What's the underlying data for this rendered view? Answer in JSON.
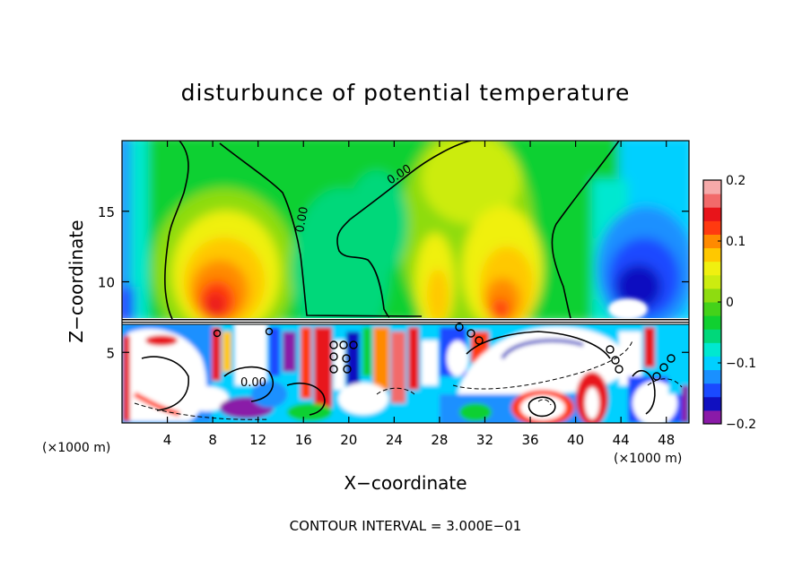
{
  "chart_data": {
    "type": "heatmap",
    "title": "disturbunce of potential temperature",
    "xlabel": "X−coordinate",
    "ylabel": "Z−coordinate",
    "x_unit_left": "(×1000 m)",
    "x_unit_right": "(×1000 m)",
    "footer": "CONTOUR INTERVAL = 3.000E−01",
    "xlim": [
      0,
      50
    ],
    "ylim": [
      0,
      20
    ],
    "x_ticks": [
      4,
      8,
      12,
      16,
      20,
      24,
      28,
      32,
      36,
      40,
      44,
      48
    ],
    "y_ticks": [
      5,
      10,
      15
    ],
    "colorbar": {
      "ticks": [
        {
          "value": 0.2,
          "label": "0.2"
        },
        {
          "value": 0.1,
          "label": "0.1"
        },
        {
          "value": 0,
          "label": "0"
        },
        {
          "value": -0.1,
          "label": "−0.1"
        },
        {
          "value": -0.2,
          "label": "−0.2"
        }
      ],
      "range": [
        -0.2,
        0.2
      ],
      "colors": [
        "#8a1aa8",
        "#1010c0",
        "#1a4aff",
        "#1a90ff",
        "#00d0ff",
        "#00e8d0",
        "#00d87a",
        "#10d030",
        "#44d21a",
        "#8edc10",
        "#ccec10",
        "#f0f010",
        "#ffc800",
        "#ff8a00",
        "#ff3a10",
        "#e8141a",
        "#f26a6a",
        "#f6aaaa"
      ]
    },
    "contour_labels": [
      "0.00",
      "0.00",
      "0.00"
    ],
    "description_upper_layer": "z above 7.5: positive anomalies near x=8-10, x=26-28, x=32; negative at x=44-46, z=10",
    "description_lower_layer": "z below 7.5: strongly perturbed turbulent field with mixed positive and negative anomalies"
  }
}
